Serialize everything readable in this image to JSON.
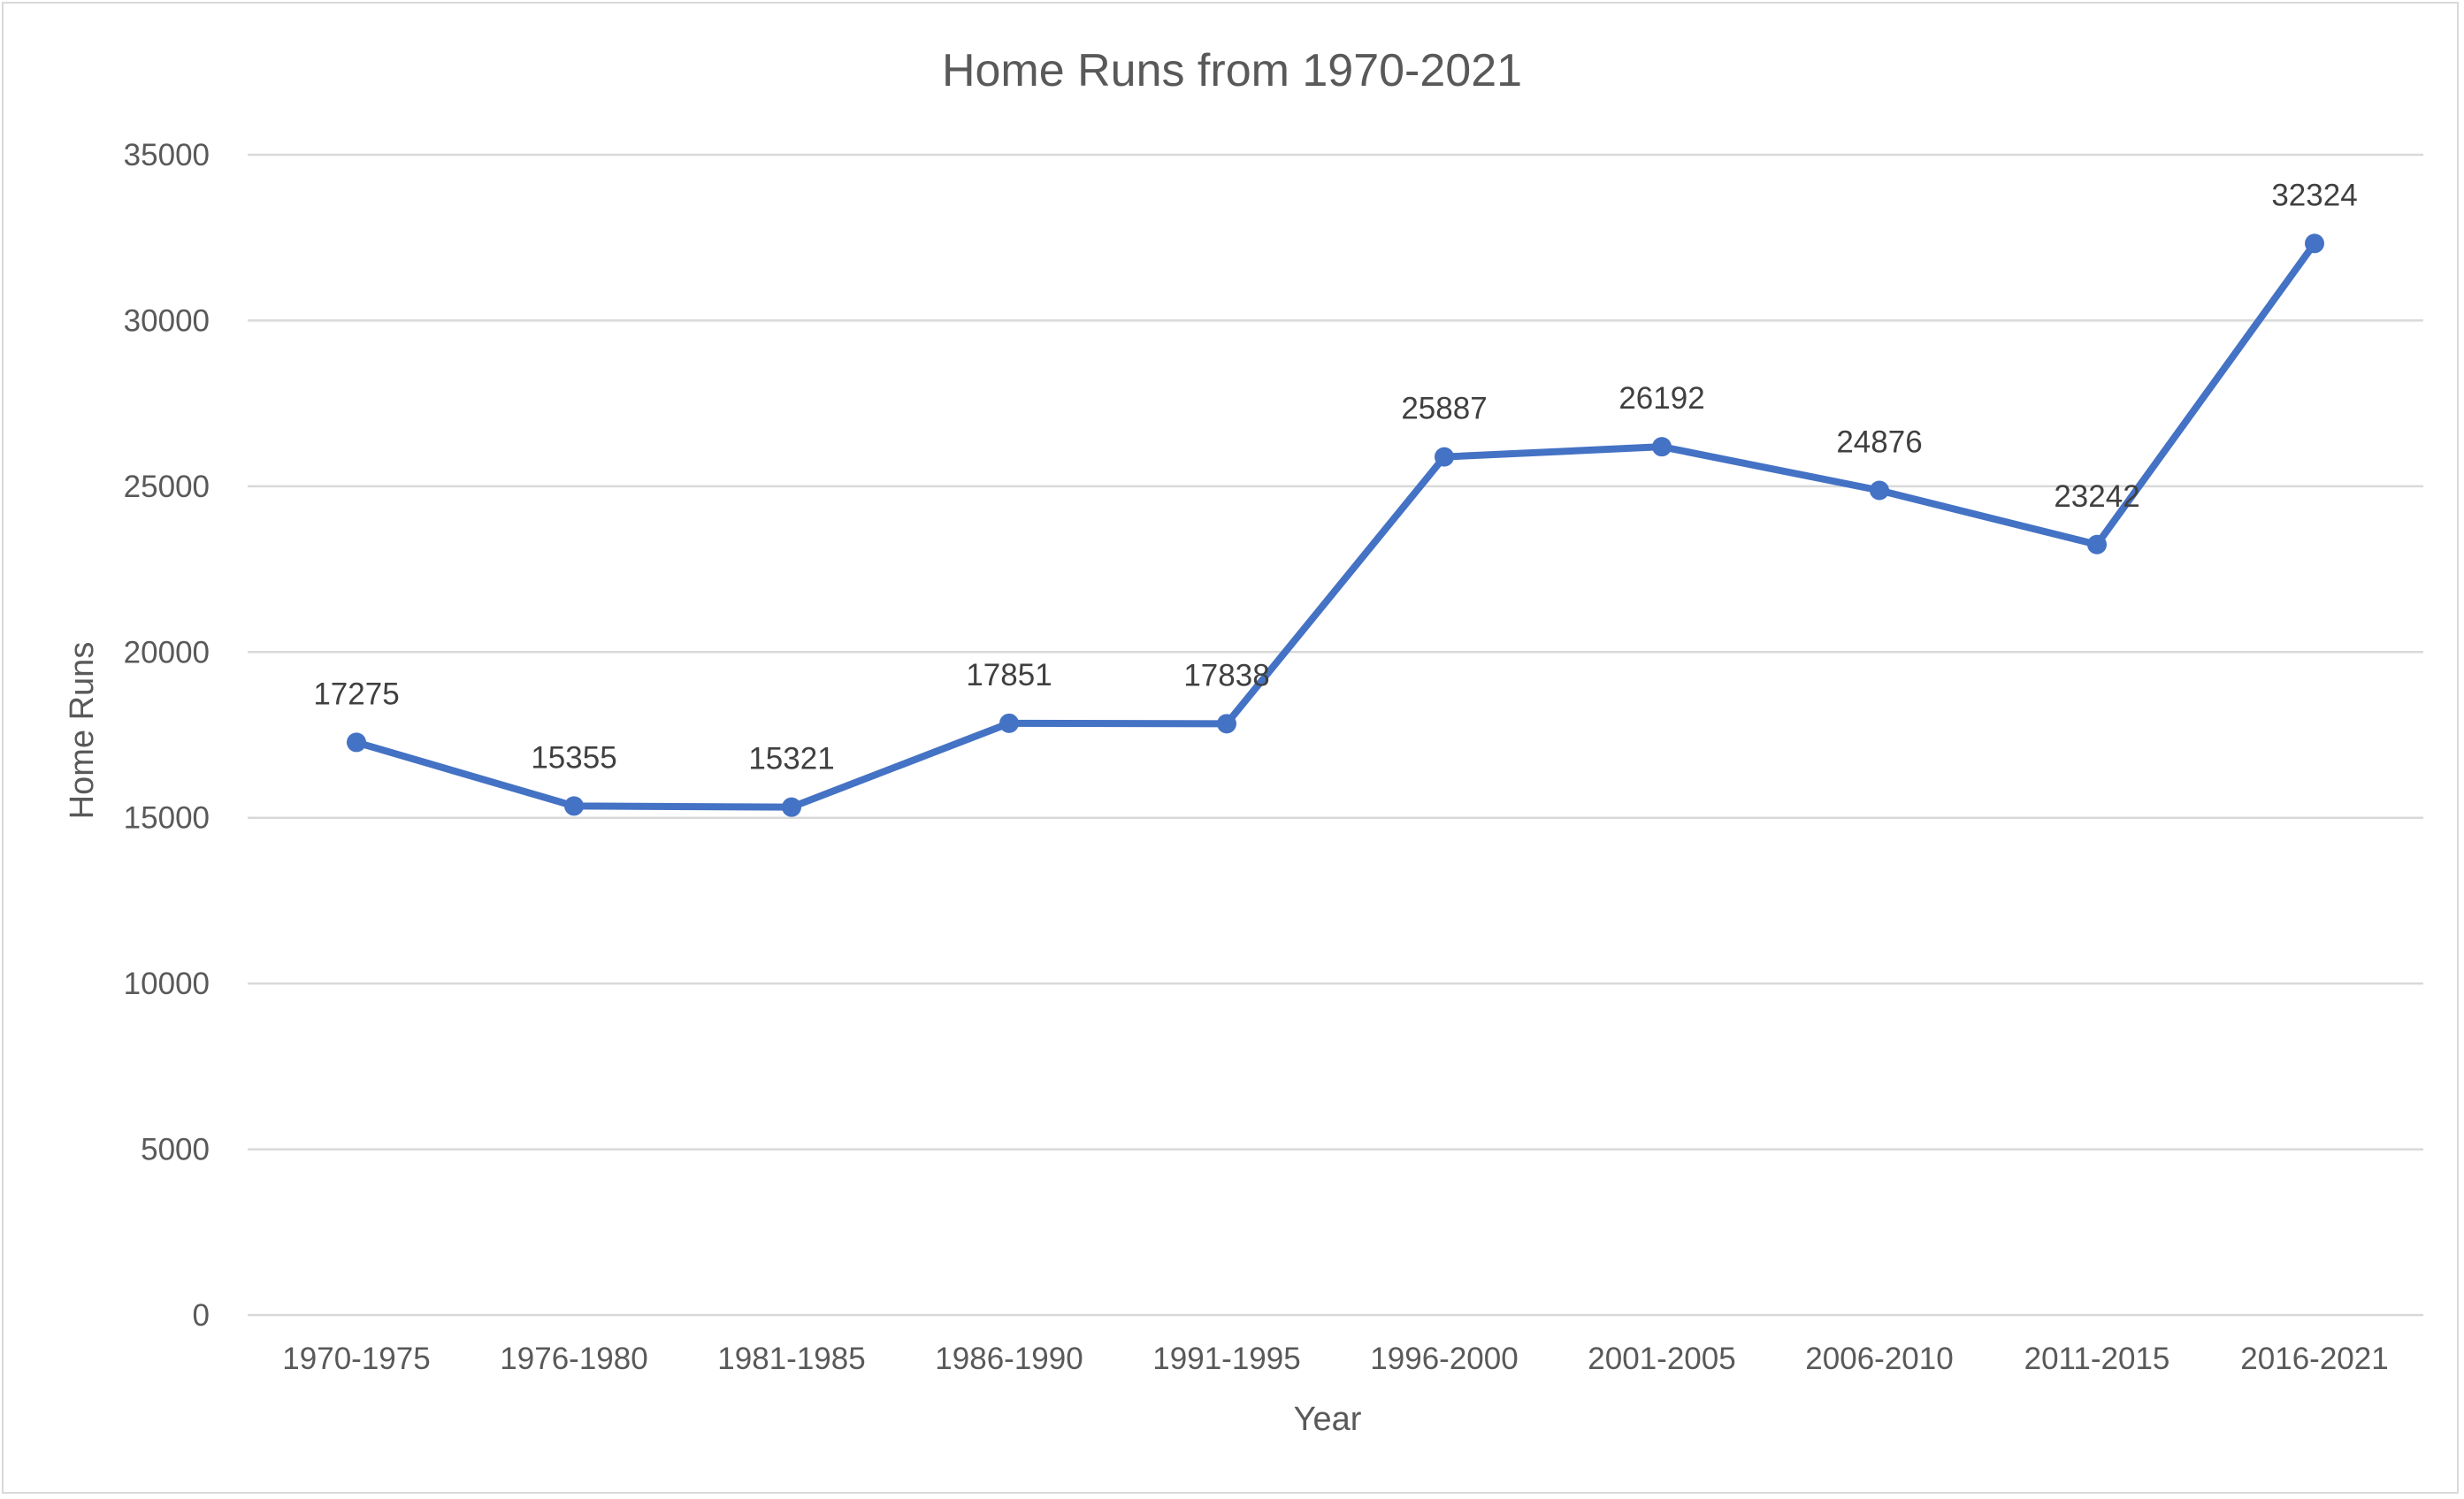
{
  "chart_data": {
    "type": "line",
    "title": "Home Runs from 1970-2021",
    "xlabel": "Year",
    "ylabel": "Home Runs",
    "categories": [
      "1970-1975",
      "1976-1980",
      "1981-1985",
      "1986-1990",
      "1991-1995",
      "1996-2000",
      "2001-2005",
      "2006-2010",
      "2011-2015",
      "2016-2021"
    ],
    "series": [
      {
        "values": [
          17275,
          15355,
          15321,
          17851,
          17838,
          25887,
          26192,
          24876,
          23242,
          32324
        ],
        "color": "#4472c4",
        "data_labels": [
          "17275",
          "15355",
          "15321",
          "17851",
          "17838",
          "25887",
          "26192",
          "24876",
          "23242",
          "32324"
        ]
      }
    ],
    "ylim": [
      0,
      35000
    ],
    "yticks": [
      "0",
      "5000",
      "10000",
      "15000",
      "20000",
      "25000",
      "30000",
      "35000"
    ],
    "grid": true,
    "legend": "none"
  }
}
